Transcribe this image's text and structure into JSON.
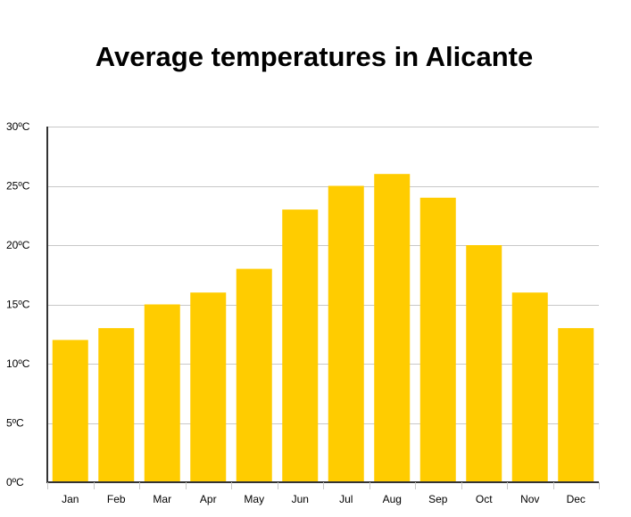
{
  "chart_data": {
    "type": "bar",
    "title": "Average temperatures in Alicante",
    "xlabel": "",
    "ylabel": "",
    "categories": [
      "Jan",
      "Feb",
      "Mar",
      "Apr",
      "May",
      "Jun",
      "Jul",
      "Aug",
      "Sep",
      "Oct",
      "Nov",
      "Dec"
    ],
    "values": [
      12,
      13,
      15,
      16,
      18,
      23,
      25,
      26,
      24,
      20,
      16,
      13
    ],
    "ylim": [
      0,
      30
    ],
    "yticks": [
      0,
      5,
      10,
      15,
      20,
      25,
      30
    ],
    "ytick_labels": [
      "0ºC",
      "5ºC",
      "10ºC",
      "15ºC",
      "20ºC",
      "25ºC",
      "30ºC"
    ],
    "grid": true,
    "legend": "none",
    "bar_color": "#FFCC00",
    "grid_color": "#C8C8C8",
    "axis_color": "#333333"
  }
}
